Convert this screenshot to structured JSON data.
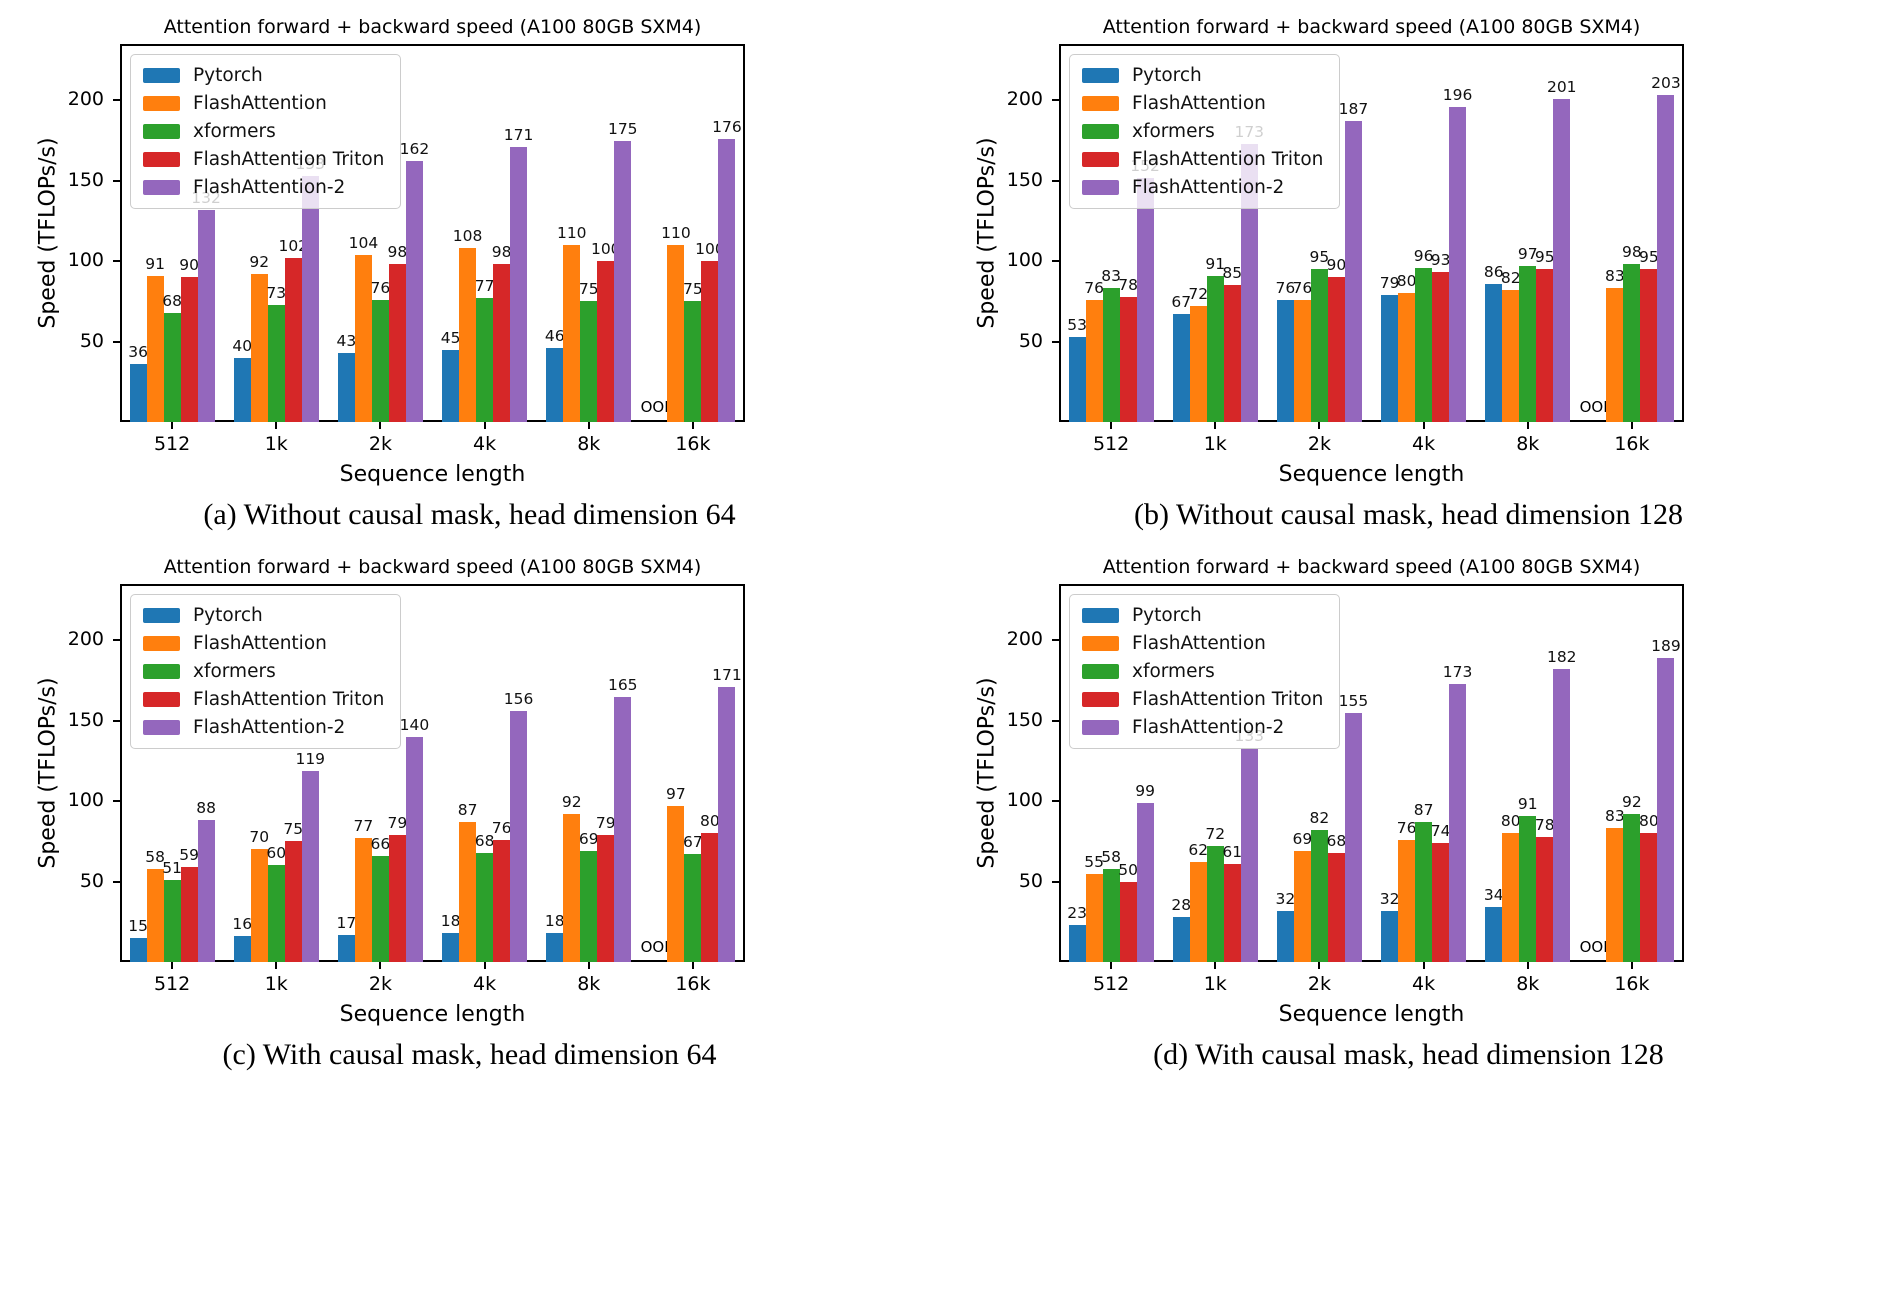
{
  "accent_colors": {
    "pytorch": "#1f77b4",
    "flashattention": "#ff7f0e",
    "xformers": "#2ca02c",
    "flashattention_triton": "#d62728",
    "flashattention_2": "#9467bd"
  },
  "chart_data": [
    {
      "id": "a",
      "type": "bar",
      "title": "Attention forward + backward speed (A100 80GB SXM4)",
      "xlabel": "Sequence length",
      "ylabel": "Speed (TFLOPs/s)",
      "caption": "(a) Without causal mask, head dimension 64",
      "categories": [
        "512",
        "1k",
        "2k",
        "4k",
        "8k",
        "16k"
      ],
      "yticks": [
        50,
        100,
        150,
        200
      ],
      "ylim": [
        0,
        235
      ],
      "grid": false,
      "legend_position": "upper left",
      "oom_label": "OOM",
      "series": [
        {
          "name": "Pytorch",
          "color": "#1f77b4",
          "values": [
            36,
            40,
            43,
            45,
            46,
            null
          ]
        },
        {
          "name": "FlashAttention",
          "color": "#ff7f0e",
          "values": [
            91,
            92,
            104,
            108,
            110,
            110
          ]
        },
        {
          "name": "xformers",
          "color": "#2ca02c",
          "values": [
            68,
            73,
            76,
            77,
            75,
            75
          ]
        },
        {
          "name": "FlashAttention Triton",
          "color": "#d62728",
          "values": [
            90,
            102,
            98,
            98,
            100,
            100
          ]
        },
        {
          "name": "FlashAttention-2",
          "color": "#9467bd",
          "values": [
            132,
            153,
            162,
            171,
            175,
            176
          ]
        }
      ]
    },
    {
      "id": "b",
      "type": "bar",
      "title": "Attention forward + backward speed (A100 80GB SXM4)",
      "xlabel": "Sequence length",
      "ylabel": "Speed (TFLOPs/s)",
      "caption": "(b) Without causal mask, head dimension 128",
      "categories": [
        "512",
        "1k",
        "2k",
        "4k",
        "8k",
        "16k"
      ],
      "yticks": [
        50,
        100,
        150,
        200
      ],
      "ylim": [
        0,
        235
      ],
      "grid": false,
      "legend_position": "upper left",
      "oom_label": "OOM",
      "series": [
        {
          "name": "Pytorch",
          "color": "#1f77b4",
          "values": [
            53,
            67,
            76,
            79,
            86,
            null
          ]
        },
        {
          "name": "FlashAttention",
          "color": "#ff7f0e",
          "values": [
            76,
            72,
            76,
            80,
            82,
            83
          ]
        },
        {
          "name": "xformers",
          "color": "#2ca02c",
          "values": [
            83,
            91,
            95,
            96,
            97,
            98
          ]
        },
        {
          "name": "FlashAttention Triton",
          "color": "#d62728",
          "values": [
            78,
            85,
            90,
            93,
            95,
            95
          ]
        },
        {
          "name": "FlashAttention-2",
          "color": "#9467bd",
          "values": [
            152,
            173,
            187,
            196,
            201,
            203
          ]
        }
      ]
    },
    {
      "id": "c",
      "type": "bar",
      "title": "Attention forward + backward speed (A100 80GB SXM4)",
      "xlabel": "Sequence length",
      "ylabel": "Speed (TFLOPs/s)",
      "caption": "(c) With causal mask, head dimension 64",
      "categories": [
        "512",
        "1k",
        "2k",
        "4k",
        "8k",
        "16k"
      ],
      "yticks": [
        50,
        100,
        150,
        200
      ],
      "ylim": [
        0,
        235
      ],
      "grid": false,
      "legend_position": "upper left",
      "oom_label": "OOM",
      "series": [
        {
          "name": "Pytorch",
          "color": "#1f77b4",
          "values": [
            15,
            16,
            17,
            18,
            18,
            null
          ]
        },
        {
          "name": "FlashAttention",
          "color": "#ff7f0e",
          "values": [
            58,
            70,
            77,
            87,
            92,
            97
          ]
        },
        {
          "name": "xformers",
          "color": "#2ca02c",
          "values": [
            51,
            60,
            66,
            68,
            69,
            67
          ]
        },
        {
          "name": "FlashAttention Triton",
          "color": "#d62728",
          "values": [
            59,
            75,
            79,
            76,
            79,
            80
          ]
        },
        {
          "name": "FlashAttention-2",
          "color": "#9467bd",
          "values": [
            88,
            119,
            140,
            156,
            165,
            171
          ]
        }
      ]
    },
    {
      "id": "d",
      "type": "bar",
      "title": "Attention forward + backward speed (A100 80GB SXM4)",
      "xlabel": "Sequence length",
      "ylabel": "Speed (TFLOPs/s)",
      "caption": "(d) With causal mask, head dimension 128",
      "categories": [
        "512",
        "1k",
        "2k",
        "4k",
        "8k",
        "16k"
      ],
      "yticks": [
        50,
        100,
        150,
        200
      ],
      "ylim": [
        0,
        235
      ],
      "grid": false,
      "legend_position": "upper left",
      "oom_label": "OOM",
      "series": [
        {
          "name": "Pytorch",
          "color": "#1f77b4",
          "values": [
            23,
            28,
            32,
            32,
            34,
            null
          ]
        },
        {
          "name": "FlashAttention",
          "color": "#ff7f0e",
          "values": [
            55,
            62,
            69,
            76,
            80,
            83
          ]
        },
        {
          "name": "xformers",
          "color": "#2ca02c",
          "values": [
            58,
            72,
            82,
            87,
            91,
            92
          ]
        },
        {
          "name": "FlashAttention Triton",
          "color": "#d62728",
          "values": [
            50,
            61,
            68,
            74,
            78,
            80
          ]
        },
        {
          "name": "FlashAttention-2",
          "color": "#9467bd",
          "values": [
            99,
            133,
            155,
            173,
            182,
            189
          ]
        }
      ]
    }
  ]
}
